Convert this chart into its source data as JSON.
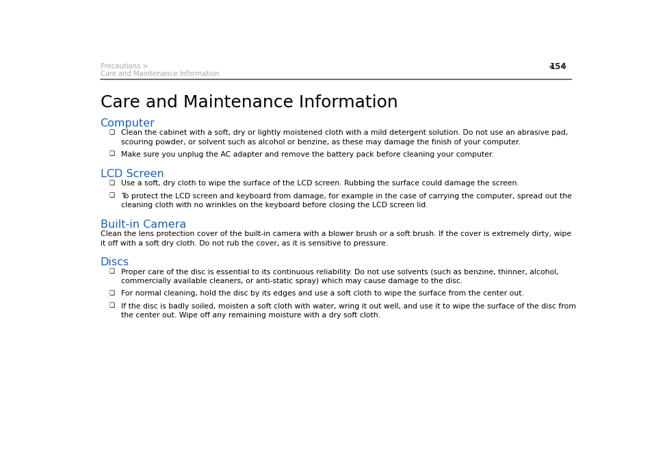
{
  "bg_color": "#ffffff",
  "header_breadcrumb_line1": "Precautions >",
  "header_breadcrumb_line2": "Care and Maintenance Information",
  "header_page": "154",
  "header_color": "#a8a8a8",
  "page_title": "Care and Maintenance Information",
  "page_title_size": 18,
  "page_title_color": "#000000",
  "section_color": "#1a5fb4",
  "body_color": "#000000",
  "sections": [
    {
      "title": "Computer",
      "bullets": [
        "Clean the cabinet with a soft, dry or lightly moistened cloth with a mild detergent solution. Do not use an abrasive pad,\nscouring powder, or solvent such as alcohol or benzine, as these may damage the finish of your computer.",
        "Make sure you unplug the AC adapter and remove the battery pack before cleaning your computer."
      ],
      "body": null
    },
    {
      "title": "LCD Screen",
      "bullets": [
        "Use a soft, dry cloth to wipe the surface of the LCD screen. Rubbing the surface could damage the screen.",
        "To protect the LCD screen and keyboard from damage, for example in the case of carrying the computer, spread out the\ncleaning cloth with no wrinkles on the keyboard before closing the LCD screen lid."
      ],
      "body": null
    },
    {
      "title": "Built-in Camera",
      "bullets": [],
      "body": "Clean the lens protection cover of the built-in camera with a blower brush or a soft brush. If the cover is extremely dirty, wipe\nit off with a soft dry cloth. Do not rub the cover, as it is sensitive to pressure."
    },
    {
      "title": "Discs",
      "bullets": [
        "Proper care of the disc is essential to its continuous reliability. Do not use solvents (such as benzine, thinner, alcohol,\ncommercially available cleaners, or anti-static spray) which may cause damage to the disc.",
        "For normal cleaning, hold the disc by its edges and use a soft cloth to wipe the surface from the center out.",
        "If the disc is badly soiled, moisten a soft cloth with water, wring it out well, and use it to wipe the surface of the disc from\nthe center out. Wipe off any remaining moisture with a dry soft cloth."
      ],
      "body": null
    }
  ]
}
